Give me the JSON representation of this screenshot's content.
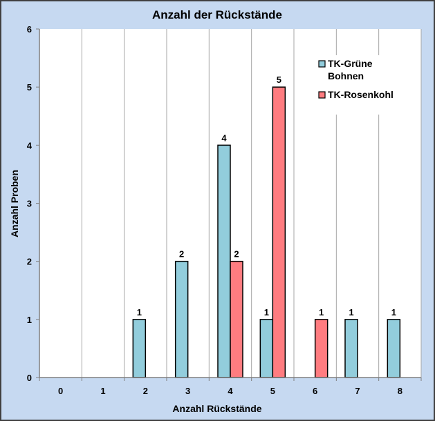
{
  "chart_data": {
    "type": "bar",
    "title": "Anzahl der Rückstände",
    "xlabel": "Anzahl Rückstände",
    "ylabel": "Anzahl Proben",
    "categories": [
      "0",
      "1",
      "2",
      "3",
      "4",
      "5",
      "6",
      "7",
      "8"
    ],
    "ylim": [
      0,
      6
    ],
    "yticks": [
      0,
      1,
      2,
      3,
      4,
      5,
      6
    ],
    "grid": "vertical",
    "legend_position": "top-right",
    "series": [
      {
        "name": "TK-Grüne Bohnen",
        "name_lines": [
          "TK-Grüne",
          "Bohnen"
        ],
        "color": "#92cddc",
        "values": [
          0,
          0,
          1,
          2,
          4,
          1,
          0,
          1,
          1
        ]
      },
      {
        "name": "TK-Rosenkohl",
        "name_lines": [
          "TK-Rosenkohl"
        ],
        "color": "#ff7c80",
        "values": [
          0,
          0,
          0,
          0,
          2,
          5,
          1,
          0,
          0
        ]
      }
    ],
    "colors": {
      "background": "#c6d9f1",
      "plot": "#ffffff",
      "grid": "#a6a6a6"
    }
  }
}
